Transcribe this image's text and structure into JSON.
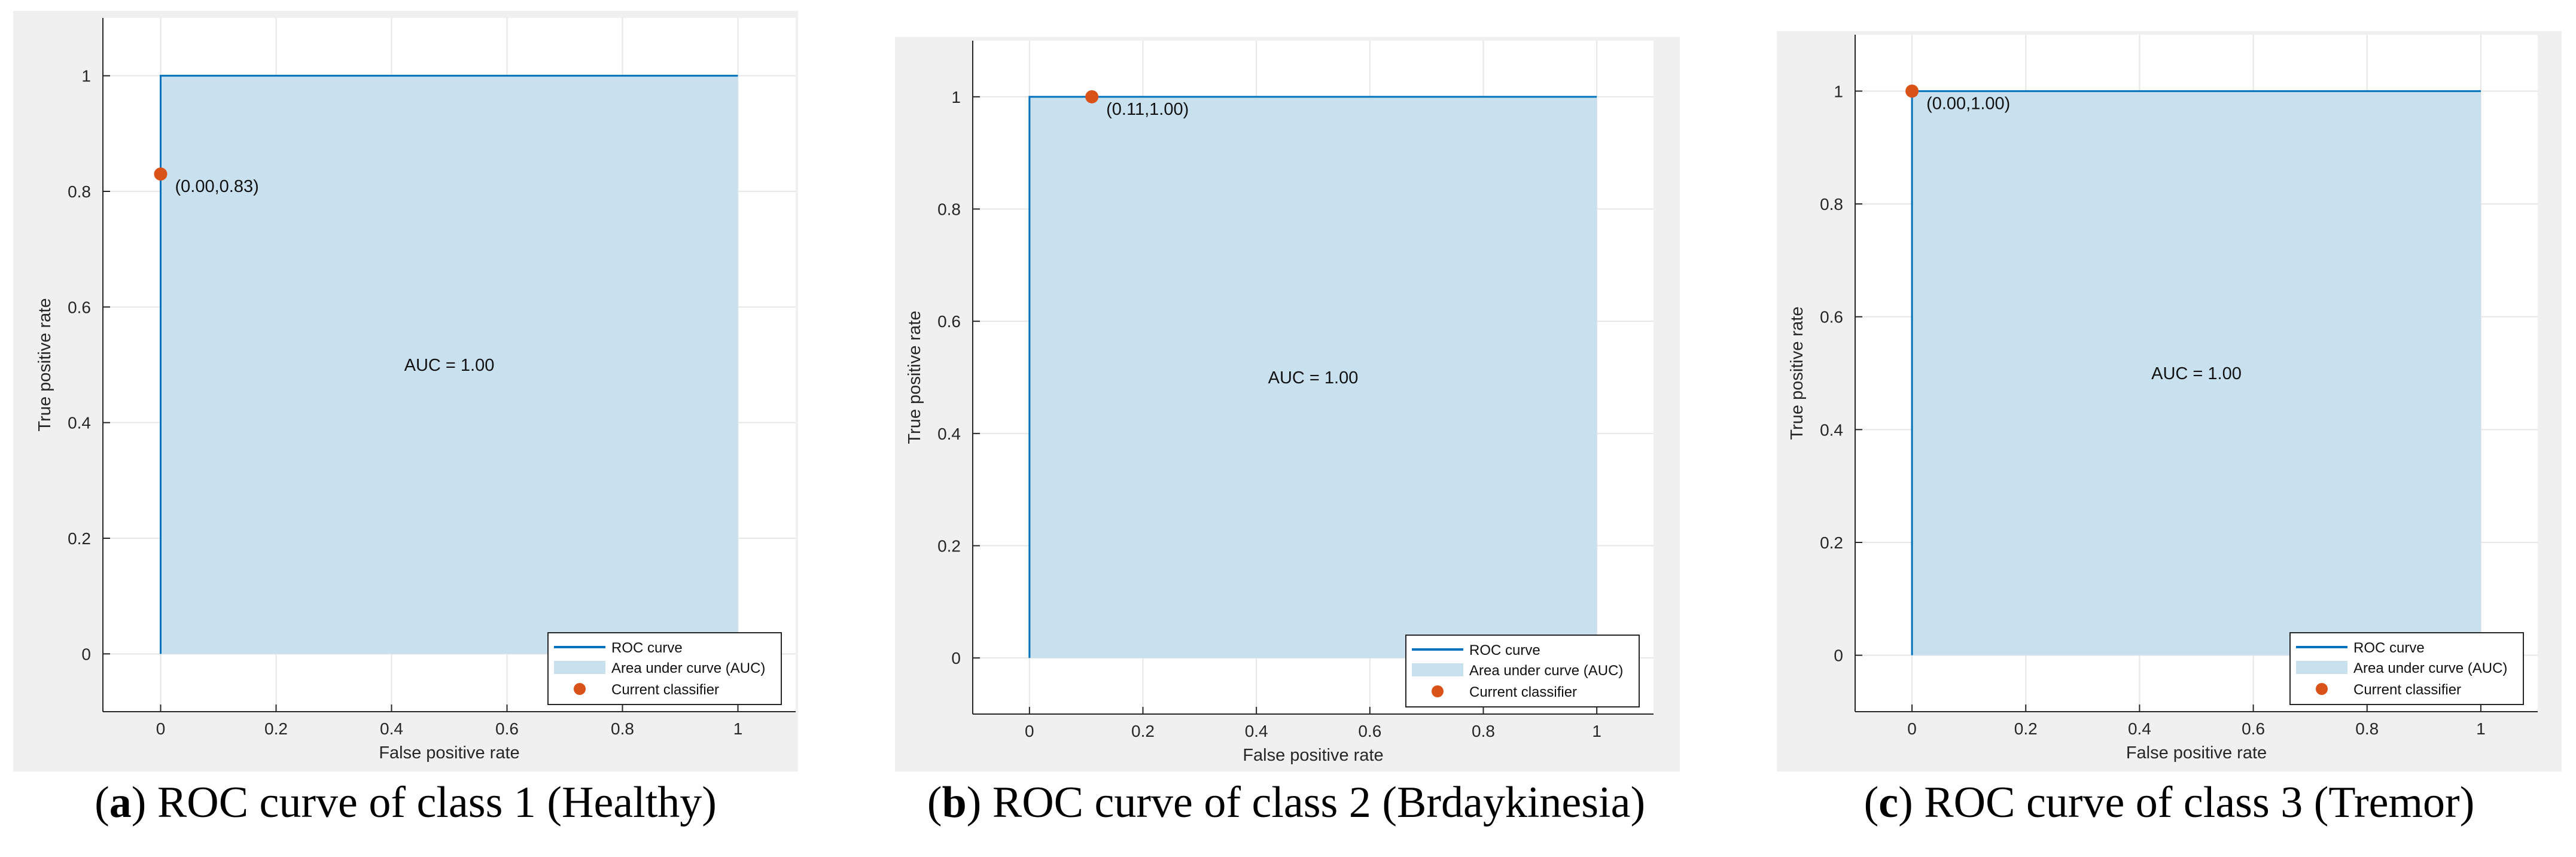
{
  "colors": {
    "roc": "#0072bd",
    "auc_fill": "#c9e0ef",
    "classifier": "#d95319",
    "grid": "#e6e6e6",
    "axis": "#262626",
    "panel_bg": "#f0f0f0"
  },
  "chart_data": [
    {
      "type": "line",
      "title": "ROC curve of class 1 (Healthy)",
      "caption_letter": "a",
      "caption_rest": "ROC curve of class 1 (Healthy)",
      "xlabel": "False positive rate",
      "ylabel": "True positive rate",
      "xlim": [
        -0.1,
        1.1
      ],
      "ylim": [
        -0.1,
        1.1
      ],
      "xticks": [
        0,
        0.2,
        0.4,
        0.6,
        0.8,
        1
      ],
      "xtick_labels": [
        "0",
        "0.2",
        "0.4",
        "0.6",
        "0.8",
        "1"
      ],
      "yticks": [
        0,
        0.2,
        0.4,
        0.6,
        0.8,
        1
      ],
      "ytick_labels": [
        "0",
        "0.2",
        "0.4",
        "0.6",
        "0.8",
        "1"
      ],
      "roc_x": [
        0,
        0,
        1
      ],
      "roc_y": [
        0,
        1,
        1
      ],
      "auc_text": "AUC = 1.00",
      "classifier_point": [
        0.0,
        0.83
      ],
      "classifier_label": "(0.00,0.83)",
      "legend": [
        "ROC curve",
        "Area under curve (AUC)",
        "Current classifier"
      ],
      "legend_location": "bottom-right",
      "grid": true
    },
    {
      "type": "line",
      "title": "ROC curve of class 2 (Brdaykinesia)",
      "caption_letter": "b",
      "caption_rest": "ROC curve of class 2 (Brdaykinesia)",
      "xlabel": "False positive rate",
      "ylabel": "True positive rate",
      "xlim": [
        -0.1,
        1.1
      ],
      "ylim": [
        -0.1,
        1.1
      ],
      "xticks": [
        0,
        0.2,
        0.4,
        0.6,
        0.8,
        1
      ],
      "xtick_labels": [
        "0",
        "0.2",
        "0.4",
        "0.6",
        "0.8",
        "1"
      ],
      "yticks": [
        0,
        0.2,
        0.4,
        0.6,
        0.8,
        1
      ],
      "ytick_labels": [
        "0",
        "0.2",
        "0.4",
        "0.6",
        "0.8",
        "1"
      ],
      "roc_x": [
        0,
        0,
        1
      ],
      "roc_y": [
        0,
        1,
        1
      ],
      "auc_text": "AUC = 1.00",
      "classifier_point": [
        0.11,
        1.0
      ],
      "classifier_label": "(0.11,1.00)",
      "legend": [
        "ROC curve",
        "Area under curve (AUC)",
        "Current classifier"
      ],
      "legend_location": "bottom-right",
      "grid": true
    },
    {
      "type": "line",
      "title": "ROC curve of class 3 (Tremor)",
      "caption_letter": "c",
      "caption_rest": "ROC curve of class 3 (Tremor)",
      "xlabel": "False positive rate",
      "ylabel": "True positive rate",
      "xlim": [
        -0.1,
        1.1
      ],
      "ylim": [
        -0.1,
        1.1
      ],
      "xticks": [
        0,
        0.2,
        0.4,
        0.6,
        0.8,
        1
      ],
      "xtick_labels": [
        "0",
        "0.2",
        "0.4",
        "0.6",
        "0.8",
        "1"
      ],
      "yticks": [
        0,
        0.2,
        0.4,
        0.6,
        0.8,
        1
      ],
      "ytick_labels": [
        "0",
        "0.2",
        "0.4",
        "0.6",
        "0.8",
        "1"
      ],
      "roc_x": [
        0,
        0,
        1
      ],
      "roc_y": [
        0,
        1,
        1
      ],
      "auc_text": "AUC = 1.00",
      "classifier_point": [
        0.0,
        1.0
      ],
      "classifier_label": "(0.00,1.00)",
      "legend": [
        "ROC curve",
        "Area under curve (AUC)",
        "Current classifier"
      ],
      "legend_location": "bottom-right",
      "grid": true
    }
  ]
}
